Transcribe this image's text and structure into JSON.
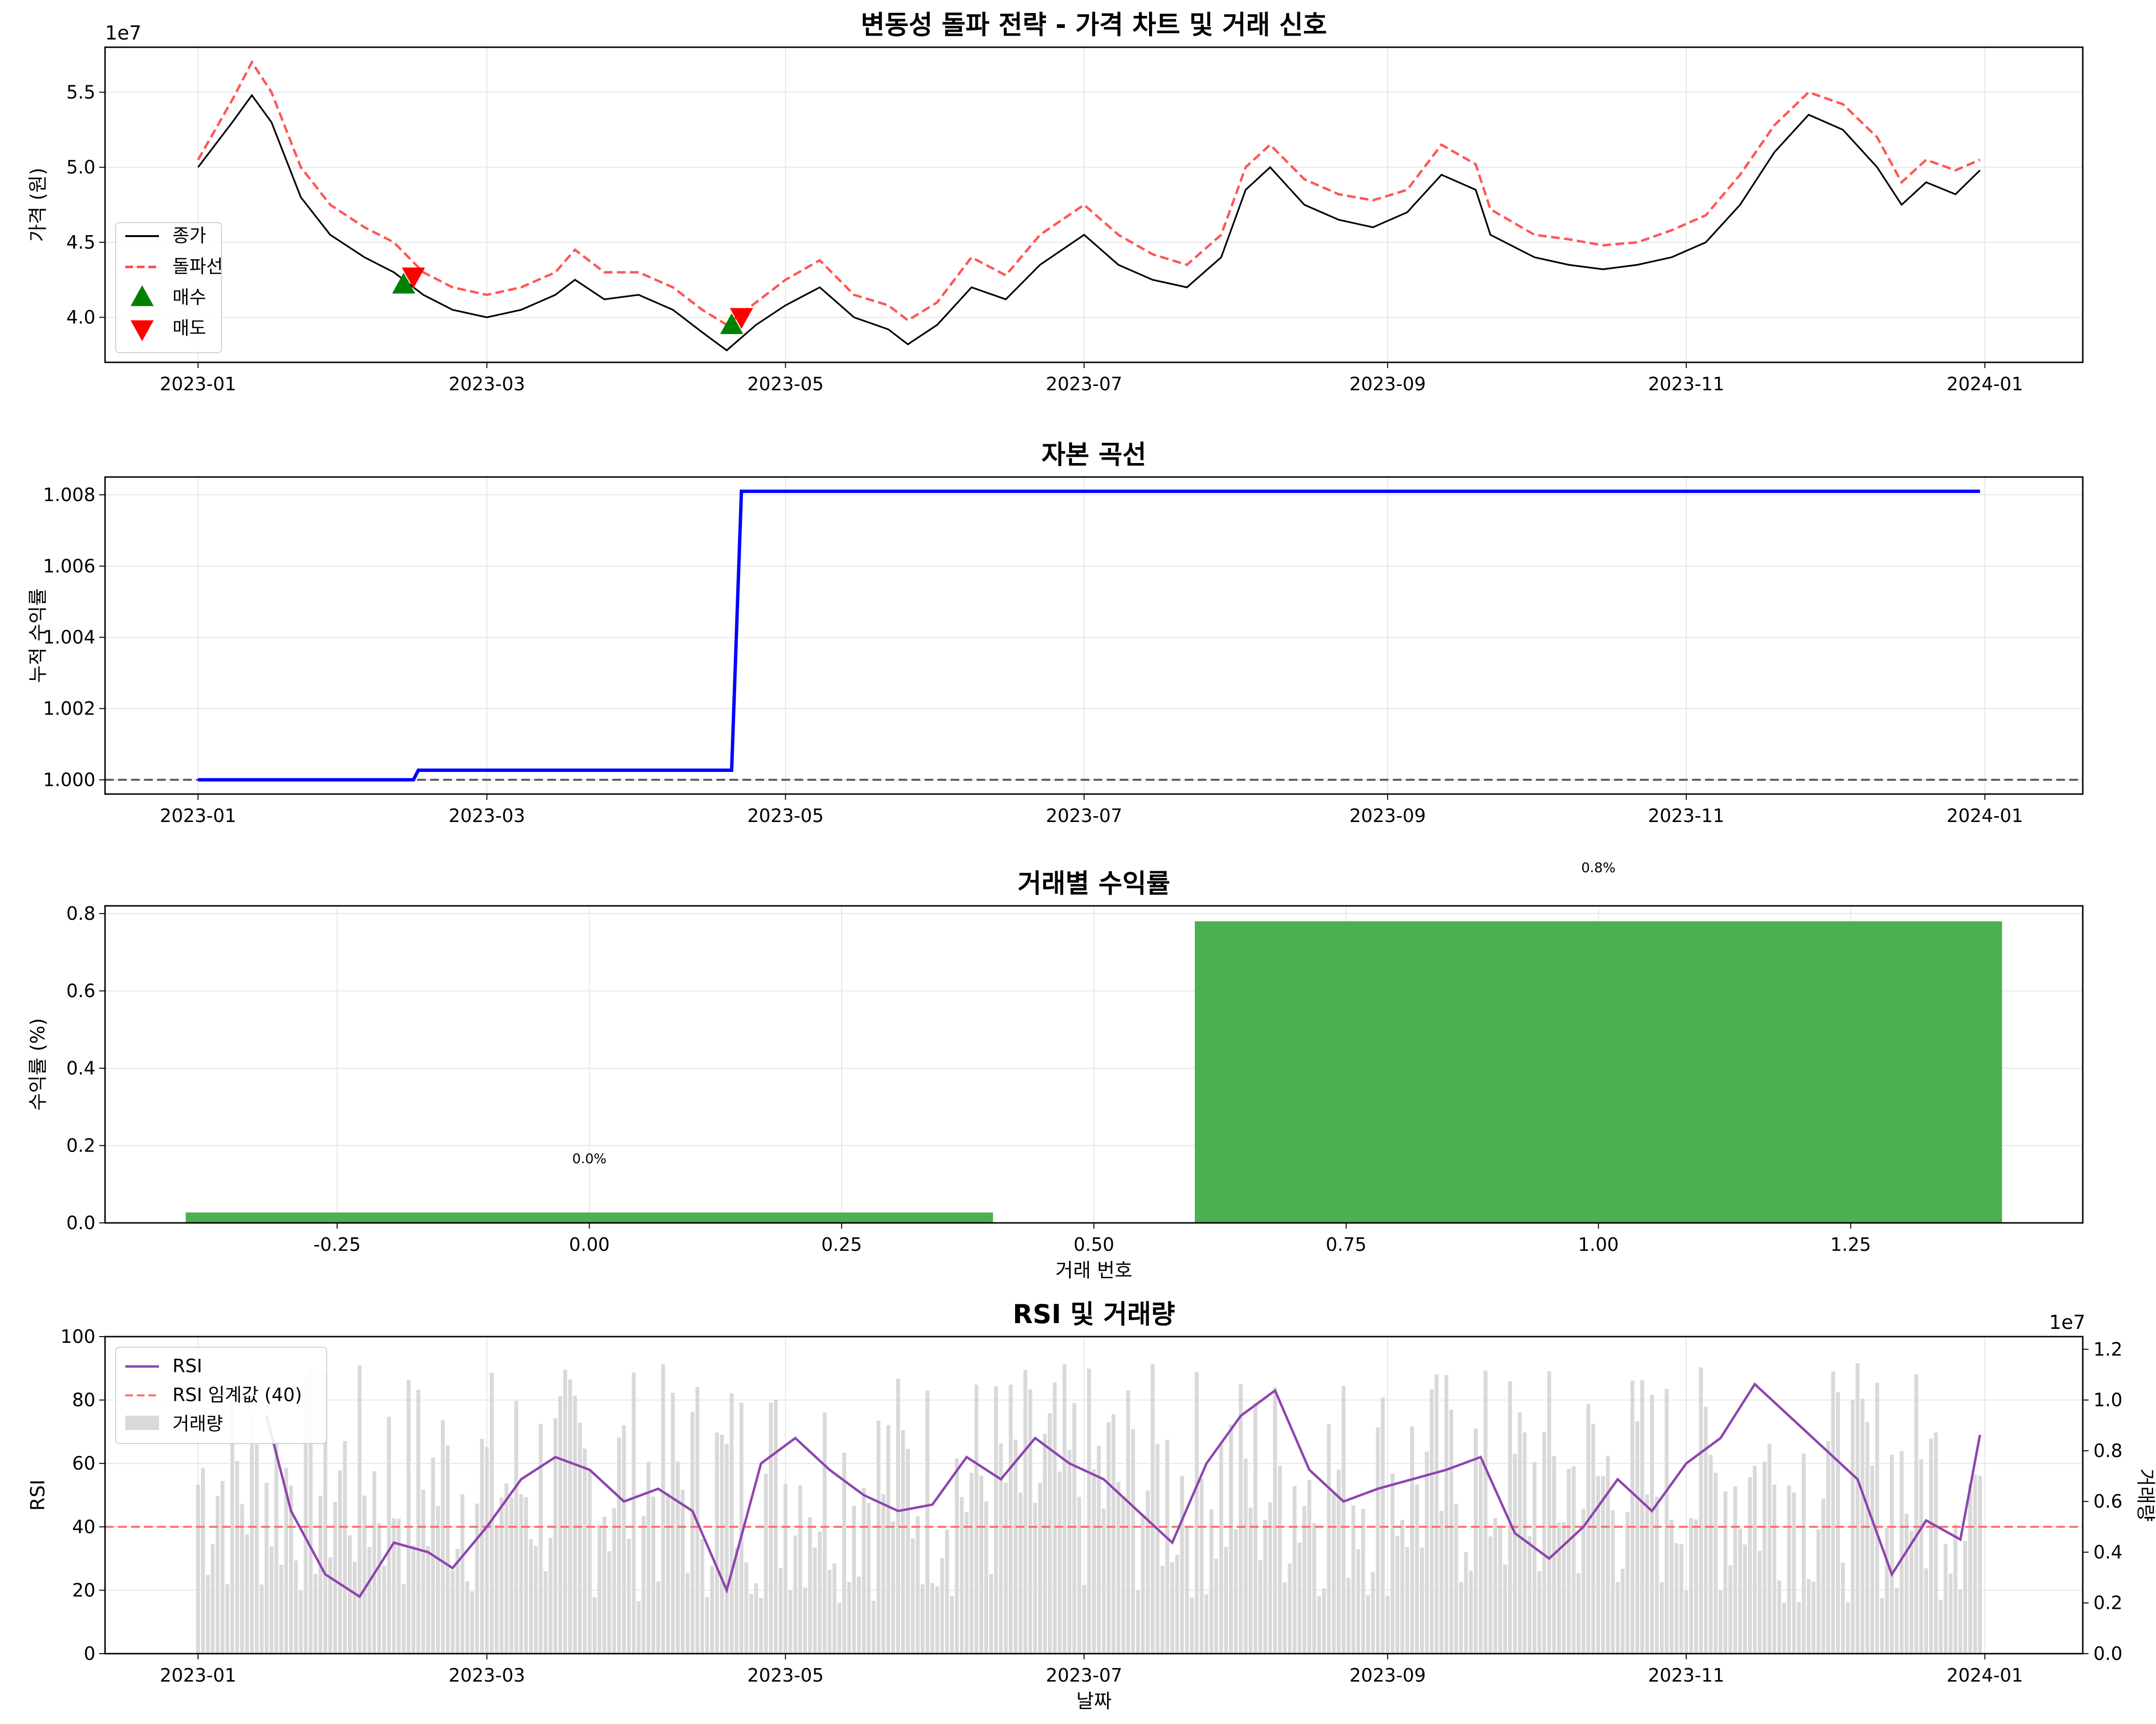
{
  "colors": {
    "close": "#000000",
    "breakout": "#ff4444",
    "buy": "#008000",
    "sell": "#ff0000",
    "equity": "#0000ff",
    "baseline": "#555555",
    "bar": "#4caf50",
    "rsi": "#8e44ad",
    "threshold": "#ff6b6b",
    "volume": "#d9d9d9",
    "grid": "#e6e6e6"
  },
  "chart_data": [
    {
      "type": "line",
      "title": "변동성 돌파 전략 - 가격 차트 및 거래 신호",
      "ylabel": "가격 (원)",
      "y_offset_text": "1e7",
      "ylim": [
        3.7,
        5.8
      ],
      "yticks": [
        "4.0",
        "4.5",
        "5.0",
        "5.5"
      ],
      "x_range": [
        "2022-12-13",
        "2024-01-21"
      ],
      "xticks": [
        "2023-01",
        "2023-03",
        "2023-05",
        "2023-07",
        "2023-09",
        "2023-11",
        "2024-01"
      ],
      "legend": {
        "placement": "center-left",
        "entries": [
          "종가",
          "돌파선",
          "매수",
          "매도"
        ]
      },
      "series": [
        {
          "name": "종가",
          "unit": "1e7 원",
          "x": [
            "2023-01-01",
            "2023-01-08",
            "2023-01-12",
            "2023-01-16",
            "2023-01-22",
            "2023-01-28",
            "2023-02-04",
            "2023-02-10",
            "2023-02-16",
            "2023-02-22",
            "2023-03-01",
            "2023-03-08",
            "2023-03-15",
            "2023-03-19",
            "2023-03-25",
            "2023-04-01",
            "2023-04-08",
            "2023-04-14",
            "2023-04-19",
            "2023-04-25",
            "2023-05-01",
            "2023-05-08",
            "2023-05-15",
            "2023-05-22",
            "2023-05-26",
            "2023-06-01",
            "2023-06-08",
            "2023-06-15",
            "2023-06-22",
            "2023-07-01",
            "2023-07-08",
            "2023-07-15",
            "2023-07-22",
            "2023-07-29",
            "2023-08-03",
            "2023-08-08",
            "2023-08-15",
            "2023-08-22",
            "2023-08-29",
            "2023-09-05",
            "2023-09-12",
            "2023-09-19",
            "2023-09-22",
            "2023-10-01",
            "2023-10-08",
            "2023-10-15",
            "2023-10-22",
            "2023-10-29",
            "2023-11-05",
            "2023-11-12",
            "2023-11-19",
            "2023-11-26",
            "2023-12-03",
            "2023-12-10",
            "2023-12-15",
            "2023-12-20",
            "2023-12-26",
            "2023-12-31"
          ],
          "values": [
            5.0,
            5.3,
            5.48,
            5.3,
            4.8,
            4.55,
            4.4,
            4.3,
            4.15,
            4.05,
            4.0,
            4.05,
            4.15,
            4.25,
            4.12,
            4.15,
            4.05,
            3.9,
            3.78,
            3.95,
            4.08,
            4.2,
            4.0,
            3.92,
            3.82,
            3.95,
            4.2,
            4.12,
            4.35,
            4.55,
            4.35,
            4.25,
            4.2,
            4.4,
            4.85,
            5.0,
            4.75,
            4.65,
            4.6,
            4.7,
            4.95,
            4.85,
            4.55,
            4.4,
            4.35,
            4.32,
            4.35,
            4.4,
            4.5,
            4.75,
            5.1,
            5.35,
            5.25,
            5.0,
            4.75,
            4.9,
            4.82,
            4.98
          ]
        },
        {
          "name": "돌파선",
          "unit": "1e7 원",
          "x": [
            "2023-01-01",
            "2023-01-08",
            "2023-01-12",
            "2023-01-16",
            "2023-01-22",
            "2023-01-28",
            "2023-02-04",
            "2023-02-10",
            "2023-02-16",
            "2023-02-22",
            "2023-03-01",
            "2023-03-08",
            "2023-03-15",
            "2023-03-19",
            "2023-03-25",
            "2023-04-01",
            "2023-04-08",
            "2023-04-14",
            "2023-04-19",
            "2023-04-25",
            "2023-05-01",
            "2023-05-08",
            "2023-05-15",
            "2023-05-22",
            "2023-05-26",
            "2023-06-01",
            "2023-06-08",
            "2023-06-15",
            "2023-06-22",
            "2023-07-01",
            "2023-07-08",
            "2023-07-15",
            "2023-07-22",
            "2023-07-29",
            "2023-08-03",
            "2023-08-08",
            "2023-08-15",
            "2023-08-22",
            "2023-08-29",
            "2023-09-05",
            "2023-09-12",
            "2023-09-19",
            "2023-09-22",
            "2023-10-01",
            "2023-10-08",
            "2023-10-15",
            "2023-10-22",
            "2023-10-29",
            "2023-11-05",
            "2023-11-12",
            "2023-11-19",
            "2023-11-26",
            "2023-12-03",
            "2023-12-10",
            "2023-12-15",
            "2023-12-20",
            "2023-12-26",
            "2023-12-31"
          ],
          "values": [
            5.05,
            5.45,
            5.7,
            5.5,
            5.0,
            4.75,
            4.6,
            4.5,
            4.3,
            4.2,
            4.15,
            4.2,
            4.3,
            4.45,
            4.3,
            4.3,
            4.2,
            4.05,
            3.95,
            4.1,
            4.25,
            4.38,
            4.15,
            4.08,
            3.98,
            4.1,
            4.4,
            4.28,
            4.55,
            4.75,
            4.55,
            4.42,
            4.35,
            4.55,
            5.0,
            5.15,
            4.92,
            4.82,
            4.78,
            4.85,
            5.15,
            5.02,
            4.72,
            4.55,
            4.52,
            4.48,
            4.5,
            4.58,
            4.68,
            4.95,
            5.28,
            5.5,
            5.42,
            5.2,
            4.9,
            5.05,
            4.98,
            5.05
          ]
        }
      ],
      "buy_signals": [
        {
          "x": "2023-02-12",
          "y": 4.22
        },
        {
          "x": "2023-04-20",
          "y": 3.95
        }
      ],
      "sell_signals": [
        {
          "x": "2023-02-14",
          "y": 4.27
        },
        {
          "x": "2023-04-22",
          "y": 4.0
        }
      ]
    },
    {
      "type": "line",
      "title": "자본 곡선",
      "ylabel": "누적 수익률",
      "ylim": [
        0.9996,
        1.0085
      ],
      "yticks": [
        "1.000",
        "1.002",
        "1.004",
        "1.006",
        "1.008"
      ],
      "x_range": [
        "2022-12-13",
        "2024-01-21"
      ],
      "xticks": [
        "2023-01",
        "2023-03",
        "2023-05",
        "2023-07",
        "2023-09",
        "2023-11",
        "2024-01"
      ],
      "baseline": 1.0,
      "series": [
        {
          "x": [
            "2023-01-01",
            "2023-02-14",
            "2023-02-15",
            "2023-04-20",
            "2023-04-22",
            "2023-12-31"
          ],
          "values": [
            1.0,
            1.0,
            1.00027,
            1.00027,
            1.0081,
            1.0081
          ]
        }
      ]
    },
    {
      "type": "bar",
      "title": "거래별 수익률",
      "xlabel": "거래 번호",
      "ylabel": "수익률 (%)",
      "xlim": [
        -0.48,
        1.48
      ],
      "ylim": [
        0,
        0.82
      ],
      "xticks": [
        "-0.25",
        "0.00",
        "0.25",
        "0.50",
        "0.75",
        "1.00",
        "1.25"
      ],
      "yticks": [
        "0.0",
        "0.2",
        "0.4",
        "0.6",
        "0.8"
      ],
      "x": [
        0,
        1
      ],
      "values": [
        0.027,
        0.78
      ],
      "data_labels": [
        "0.0%",
        "0.8%"
      ]
    },
    {
      "type": "line",
      "title": "RSI 및 거래량",
      "xlabel": "날짜",
      "ylabel": "RSI",
      "y2label": "거래량",
      "y2_offset_text": "1e7",
      "ylim": [
        0,
        100
      ],
      "y2lim": [
        0,
        1.25
      ],
      "yticks": [
        "0",
        "20",
        "40",
        "60",
        "80",
        "100"
      ],
      "y2ticks": [
        "0.0",
        "0.2",
        "0.4",
        "0.6",
        "0.8",
        "1.0",
        "1.2"
      ],
      "x_range": [
        "2022-12-13",
        "2024-01-21"
      ],
      "xticks": [
        "2023-01",
        "2023-03",
        "2023-05",
        "2023-07",
        "2023-09",
        "2023-11",
        "2024-01"
      ],
      "threshold": 40,
      "legend": {
        "placement": "top-left",
        "entries": [
          "RSI",
          "RSI 임계값 (40)",
          "거래량"
        ]
      },
      "series": [
        {
          "name": "RSI",
          "x": [
            "2023-01-15",
            "2023-01-20",
            "2023-01-27",
            "2023-02-03",
            "2023-02-10",
            "2023-02-17",
            "2023-02-22",
            "2023-03-01",
            "2023-03-08",
            "2023-03-15",
            "2023-03-22",
            "2023-03-29",
            "2023-04-05",
            "2023-04-12",
            "2023-04-19",
            "2023-04-26",
            "2023-05-03",
            "2023-05-10",
            "2023-05-17",
            "2023-05-24",
            "2023-05-31",
            "2023-06-07",
            "2023-06-14",
            "2023-06-21",
            "2023-06-28",
            "2023-07-05",
            "2023-07-12",
            "2023-07-19",
            "2023-07-26",
            "2023-08-02",
            "2023-08-09",
            "2023-08-16",
            "2023-08-23",
            "2023-08-30",
            "2023-09-06",
            "2023-09-13",
            "2023-09-20",
            "2023-09-27",
            "2023-10-04",
            "2023-10-11",
            "2023-10-18",
            "2023-10-25",
            "2023-11-01",
            "2023-11-08",
            "2023-11-15",
            "2023-11-22",
            "2023-11-29",
            "2023-12-06",
            "2023-12-13",
            "2023-12-20",
            "2023-12-27",
            "2023-12-31"
          ],
          "values": [
            75,
            45,
            25,
            18,
            35,
            32,
            27,
            40,
            55,
            62,
            58,
            48,
            52,
            45,
            20,
            60,
            68,
            58,
            50,
            45,
            47,
            62,
            55,
            68,
            60,
            55,
            45,
            35,
            60,
            75,
            83,
            58,
            48,
            52,
            55,
            58,
            62,
            38,
            30,
            40,
            55,
            45,
            60,
            68,
            85,
            75,
            65,
            55,
            25,
            42,
            36,
            69
          ]
        },
        {
          "name": "거래량",
          "unit": "1e7",
          "note": "daily bars, roughly 0.2–1.15 ×1e7"
        }
      ]
    }
  ]
}
